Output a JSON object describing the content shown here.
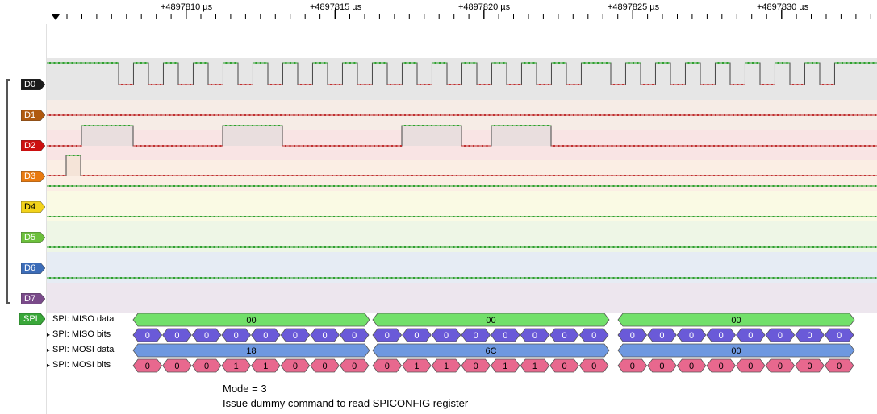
{
  "timeline": {
    "ticks": [
      "+4897810 µs",
      "+4897815 µs",
      "+4897820 µs",
      "+4897825 µs",
      "+4897830 µs"
    ]
  },
  "channels": [
    {
      "label": "D0",
      "color": "#1a1a1a"
    },
    {
      "label": "D1",
      "color": "#b05a10"
    },
    {
      "label": "D2",
      "color": "#cc1010"
    },
    {
      "label": "D3",
      "color": "#e87a10"
    },
    {
      "label": "D4",
      "color": "#f2d21a"
    },
    {
      "label": "D5",
      "color": "#6cc03c"
    },
    {
      "label": "D6",
      "color": "#3c6cb8"
    },
    {
      "label": "D7",
      "color": "#7a4a8a"
    }
  ],
  "spi": {
    "tag": "SPI",
    "rows": {
      "miso_data": "SPI: MISO data",
      "miso_bits": "SPI: MISO bits",
      "mosi_data": "SPI: MOSI data",
      "mosi_bits": "SPI: MOSI bits"
    },
    "miso_bytes": [
      "00",
      "00",
      "00"
    ],
    "mosi_bytes": [
      "18",
      "6C",
      "00"
    ],
    "miso_bits": [
      [
        "0",
        "0",
        "0",
        "0",
        "0",
        "0",
        "0",
        "0"
      ],
      [
        "0",
        "0",
        "0",
        "0",
        "0",
        "0",
        "0",
        "0"
      ],
      [
        "0",
        "0",
        "0",
        "0",
        "0",
        "0",
        "0",
        "0"
      ]
    ],
    "mosi_bits": [
      [
        "0",
        "0",
        "0",
        "1",
        "1",
        "0",
        "0",
        "0"
      ],
      [
        "0",
        "1",
        "1",
        "0",
        "1",
        "1",
        "0",
        "0"
      ],
      [
        "0",
        "0",
        "0",
        "0",
        "0",
        "0",
        "0",
        "0"
      ]
    ],
    "colors": {
      "miso_data": "#72e06a",
      "miso_bits": "#6a5ad8",
      "mosi_data": "#6e98e0",
      "mosi_bits": "#e8688e"
    }
  },
  "note": {
    "line1": "Mode = 3",
    "line2": "Issue dummy command to read SPICONFIG register"
  }
}
